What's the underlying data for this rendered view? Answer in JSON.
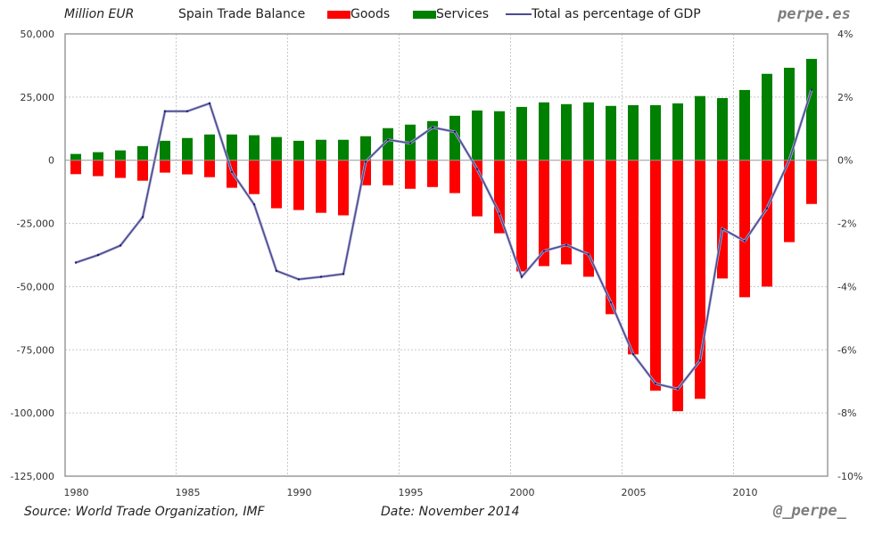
{
  "header": {
    "unit_label": "Million EUR",
    "brand_top": "perpe.es"
  },
  "footer": {
    "source": "Source: World Trade Organization, IMF",
    "date": "Date: November 2014",
    "brand_bottom": "@_perpe_"
  },
  "colors": {
    "goods": "#ff0000",
    "services": "#008000",
    "line": "#4a4a8f",
    "grid": "#c8c8c8",
    "zero": "#999999"
  },
  "chart_data": {
    "type": "bar",
    "title": "Spain Trade Balance",
    "xlabel": "",
    "ylabel": "Million EUR",
    "y2label": "% of GDP",
    "ylim": [
      -125000,
      50000
    ],
    "y2lim": [
      -10,
      4
    ],
    "grid": true,
    "legend_position": "top",
    "legend": [
      "Goods",
      "Services",
      "Total as percentage of GDP"
    ],
    "x_tick_labels": [
      "1980",
      "1985",
      "1990",
      "1995",
      "2000",
      "2005",
      "2010"
    ],
    "y_tick_labels": [
      "50,000",
      "25,000",
      "0",
      "-25,000",
      "-50,000",
      "-75,000",
      "-100,000",
      "-125,000"
    ],
    "y_ticks": [
      50000,
      25000,
      0,
      -25000,
      -50000,
      -75000,
      -100000,
      -125000
    ],
    "y2_tick_labels": [
      "4%",
      "2%",
      "0%",
      "-2%",
      "-4%",
      "-6%",
      "-8%",
      "-10%"
    ],
    "y2_ticks": [
      4,
      2,
      0,
      -2,
      -4,
      -6,
      -8,
      -10
    ],
    "categories": [
      1980,
      1981,
      1982,
      1983,
      1984,
      1985,
      1986,
      1987,
      1988,
      1989,
      1990,
      1991,
      1992,
      1993,
      1994,
      1995,
      1996,
      1997,
      1998,
      1999,
      2000,
      2001,
      2002,
      2003,
      2004,
      2005,
      2006,
      2007,
      2008,
      2009,
      2010,
      2011,
      2012,
      2013
    ],
    "series": [
      {
        "name": "Goods",
        "type": "bar",
        "axis": "left",
        "values": [
          -5500,
          -6300,
          -7000,
          -8100,
          -4900,
          -5600,
          -6700,
          -10900,
          -13400,
          -19000,
          -19700,
          -20800,
          -21800,
          -9900,
          -9900,
          -11300,
          -10600,
          -13000,
          -22200,
          -28900,
          -44000,
          -41900,
          -41200,
          -46100,
          -60900,
          -76800,
          -91200,
          -99300,
          -94400,
          -46800,
          -54200,
          -50000,
          -32400,
          -17300
        ]
      },
      {
        "name": "Services",
        "type": "bar",
        "axis": "left",
        "values": [
          2500,
          3200,
          3900,
          5600,
          7700,
          8800,
          10200,
          10200,
          9900,
          9200,
          7700,
          8100,
          8100,
          9500,
          12700,
          14100,
          15500,
          17600,
          19700,
          19400,
          21100,
          22900,
          22200,
          22900,
          21500,
          21800,
          21800,
          22500,
          25400,
          24600,
          27800,
          34200,
          36600,
          40100
        ]
      },
      {
        "name": "Total as percentage of GDP",
        "type": "line",
        "axis": "right",
        "values": [
          -3.24,
          -3.0,
          -2.7,
          -1.8,
          1.55,
          1.55,
          1.8,
          -0.37,
          -1.4,
          -3.5,
          -3.77,
          -3.69,
          -3.6,
          -0.05,
          0.65,
          0.54,
          1.04,
          0.9,
          -0.28,
          -1.69,
          -3.69,
          -2.87,
          -2.68,
          -2.98,
          -4.5,
          -6.14,
          -7.07,
          -7.24,
          -6.34,
          -2.17,
          -2.56,
          -1.52,
          0.0,
          2.23
        ]
      }
    ]
  }
}
